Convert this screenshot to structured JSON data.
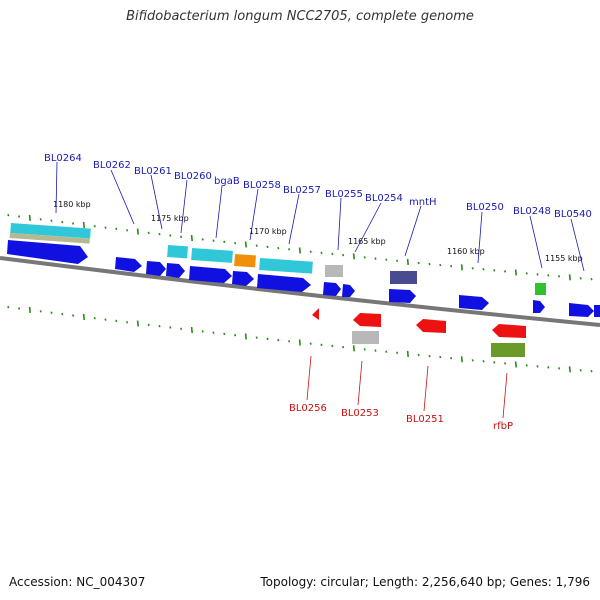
{
  "title": "Bifidobacterium longum NCC2705, complete genome",
  "footer": {
    "accession": "Accession: NC_004307",
    "summary": "Topology: circular; Length: 2,256,640 bp; Genes: 1,796"
  },
  "colors": {
    "forward_gene": "#1010e0",
    "reverse_gene": "#ee1111",
    "forward_label": "#1a1ab0",
    "reverse_label": "#cc1111",
    "backbone": "#777777",
    "tick": "#2a8a1a",
    "cds_cyan": "#30c8d8",
    "cds_orange": "#f0900a",
    "cds_gray": "#b8b8b8",
    "cds_navy": "#4a4a90",
    "cds_green": "#30c030",
    "cds_olive": "#6a9a2a",
    "cds_tan": "#b8b890"
  },
  "scale_labels": [
    "1180 kbp",
    "1175 kbp",
    "1170 kbp",
    "1165 kbp",
    "1160 kbp",
    "1155 kbp"
  ],
  "forward_labels": [
    "BL0264",
    "BL0262",
    "BL0261",
    "BL0260",
    "bgaB",
    "BL0258",
    "BL0257",
    "BL0255",
    "BL0254",
    "mntH",
    "BL0250",
    "BL0248",
    "BL0540"
  ],
  "reverse_labels": [
    "BL0256",
    "BL0253",
    "BL0251",
    "rfbP"
  ]
}
